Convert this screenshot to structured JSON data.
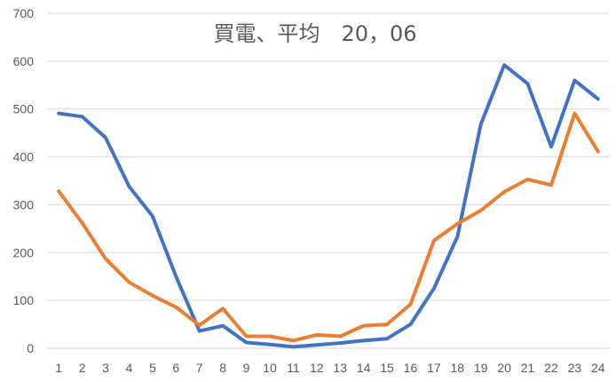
{
  "chart_data": {
    "type": "line",
    "title": "買電、平均　20，06",
    "xlabel": "",
    "ylabel": "",
    "categories": [
      "1",
      "2",
      "3",
      "4",
      "5",
      "6",
      "7",
      "8",
      "9",
      "10",
      "11",
      "12",
      "13",
      "14",
      "15",
      "16",
      "17",
      "18",
      "19",
      "20",
      "21",
      "22",
      "23",
      "24"
    ],
    "ylim": [
      0,
      700
    ],
    "yticks": [
      0,
      100,
      200,
      300,
      400,
      500,
      600,
      700
    ],
    "grid": true,
    "legend": "none",
    "series": [
      {
        "color": "#4472C4",
        "values": [
          491,
          484,
          440,
          338,
          276,
          150,
          36,
          47,
          12,
          8,
          3,
          7,
          11,
          16,
          20,
          50,
          125,
          233,
          468,
          592,
          553,
          421,
          560,
          521
        ]
      },
      {
        "color": "#ED7D31",
        "values": [
          328,
          262,
          187,
          138,
          110,
          86,
          48,
          83,
          25,
          25,
          16,
          28,
          25,
          47,
          50,
          92,
          225,
          260,
          288,
          327,
          353,
          341,
          491,
          411
        ]
      }
    ]
  }
}
